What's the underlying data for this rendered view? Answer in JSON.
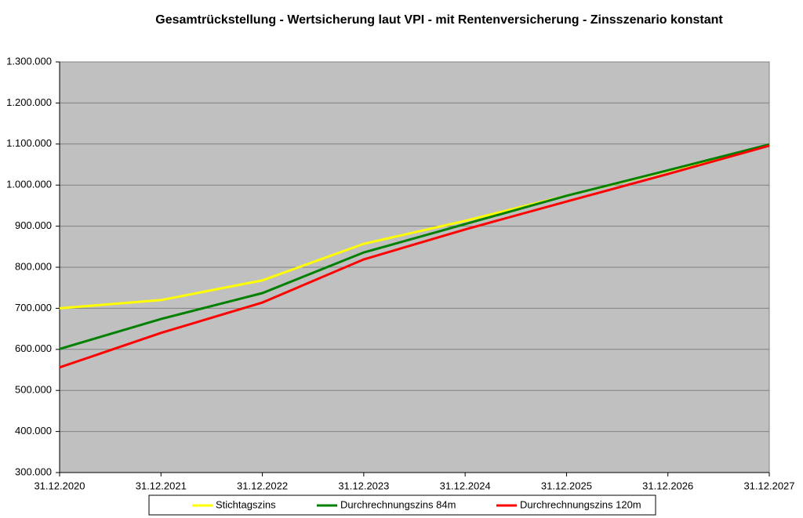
{
  "chart_data": {
    "type": "line",
    "title": "Gesamtrückstellung - Wertsicherung laut VPI - mit Rentenversicherung - Zinsszenario konstant",
    "categories": [
      "31.12.2020",
      "31.12.2021",
      "31.12.2022",
      "31.12.2023",
      "31.12.2024",
      "31.12.2025",
      "31.12.2026",
      "31.12.2027"
    ],
    "series": [
      {
        "name": "Stichtagszins",
        "color": "#ffff00",
        "values": [
          700000,
          720000,
          768000,
          857000,
          913000,
          974000,
          1035000,
          1097000
        ]
      },
      {
        "name": "Durchrechnungszins 84m",
        "color": "#008000",
        "values": [
          601000,
          674000,
          737000,
          836000,
          905000,
          974000,
          1036000,
          1099000
        ]
      },
      {
        "name": "Durchrechnungszins 120m",
        "color": "#ff0000",
        "values": [
          556000,
          640000,
          714000,
          819000,
          892000,
          960000,
          1027000,
          1096000
        ]
      }
    ],
    "ylim": [
      300000,
      1300000
    ],
    "yticks": [
      {
        "value": 300000,
        "label": "300.000"
      },
      {
        "value": 400000,
        "label": "400.000"
      },
      {
        "value": 500000,
        "label": "500.000"
      },
      {
        "value": 600000,
        "label": "600.000"
      },
      {
        "value": 700000,
        "label": "700.000"
      },
      {
        "value": 800000,
        "label": "800.000"
      },
      {
        "value": 900000,
        "label": "900.000"
      },
      {
        "value": 1000000,
        "label": "1.000.000"
      },
      {
        "value": 1100000,
        "label": "1.100.000"
      },
      {
        "value": 1200000,
        "label": "1.200.000"
      },
      {
        "value": 1300000,
        "label": "1.300.000"
      }
    ],
    "grid": true
  }
}
